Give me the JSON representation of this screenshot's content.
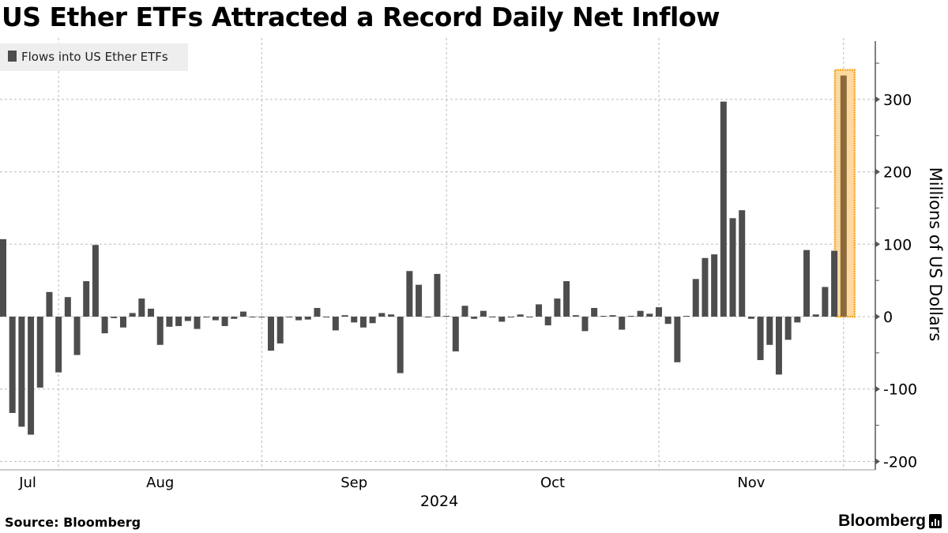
{
  "title": "US Ether ETFs Attracted a Record Daily Net Inflow",
  "source": "Source: Bloomberg",
  "brand": "Bloomberg",
  "colors": {
    "bar": "#4d4d4d",
    "highlight_fill": "#fdd9a0",
    "highlight_border": "#f5a623",
    "highlight_bar": "#8b6a3a",
    "grid": "#bbbbbb",
    "legend_bg": "#eeeeee"
  },
  "chart_data": {
    "type": "bar",
    "title": "US Ether ETFs Attracted a Record Daily Net Inflow",
    "legend": [
      "Flows into US Ether ETFs"
    ],
    "legend_placement": "top-left",
    "xlabel": "2024",
    "ylabel": "Millions of US Dollars",
    "ylim": [
      -212,
      385
    ],
    "yticks": [
      300,
      200,
      100,
      0,
      -100,
      -200
    ],
    "month_labels": [
      {
        "label": "Jul",
        "start": 0,
        "end": 6
      },
      {
        "label": "Aug",
        "start": 6,
        "end": 28
      },
      {
        "label": "Sep",
        "start": 28,
        "end": 48
      },
      {
        "label": "Oct",
        "start": 48,
        "end": 71
      },
      {
        "label": "Nov",
        "start": 71,
        "end": 91
      }
    ],
    "month_gridlines": [
      6,
      28,
      48,
      71,
      91
    ],
    "grid": true,
    "highlight_index": 91,
    "values": [
      107,
      -133,
      -152,
      -163,
      -98,
      34,
      -77,
      27,
      -53,
      49,
      99,
      -23,
      -2,
      -15,
      5,
      25,
      11,
      -39,
      -14,
      -13,
      -6,
      -17,
      -1,
      -5,
      -13,
      -3,
      7,
      -1,
      -1,
      -47,
      -37,
      -1,
      -5,
      -4,
      12,
      -1,
      -19,
      2,
      -8,
      -15,
      -9,
      5,
      3,
      -78,
      63,
      44,
      -1,
      59,
      0,
      -48,
      15,
      -3,
      8,
      -1,
      -7,
      -1,
      3,
      -1,
      17,
      -12,
      25,
      49,
      2,
      -20,
      12,
      1,
      2,
      -18,
      0.5,
      8,
      4,
      13,
      -10,
      -63,
      0.5,
      52,
      81,
      86,
      297,
      136,
      147,
      -3,
      -60,
      -39,
      -80,
      -32,
      -8,
      92,
      3,
      41,
      91,
      333
    ]
  }
}
